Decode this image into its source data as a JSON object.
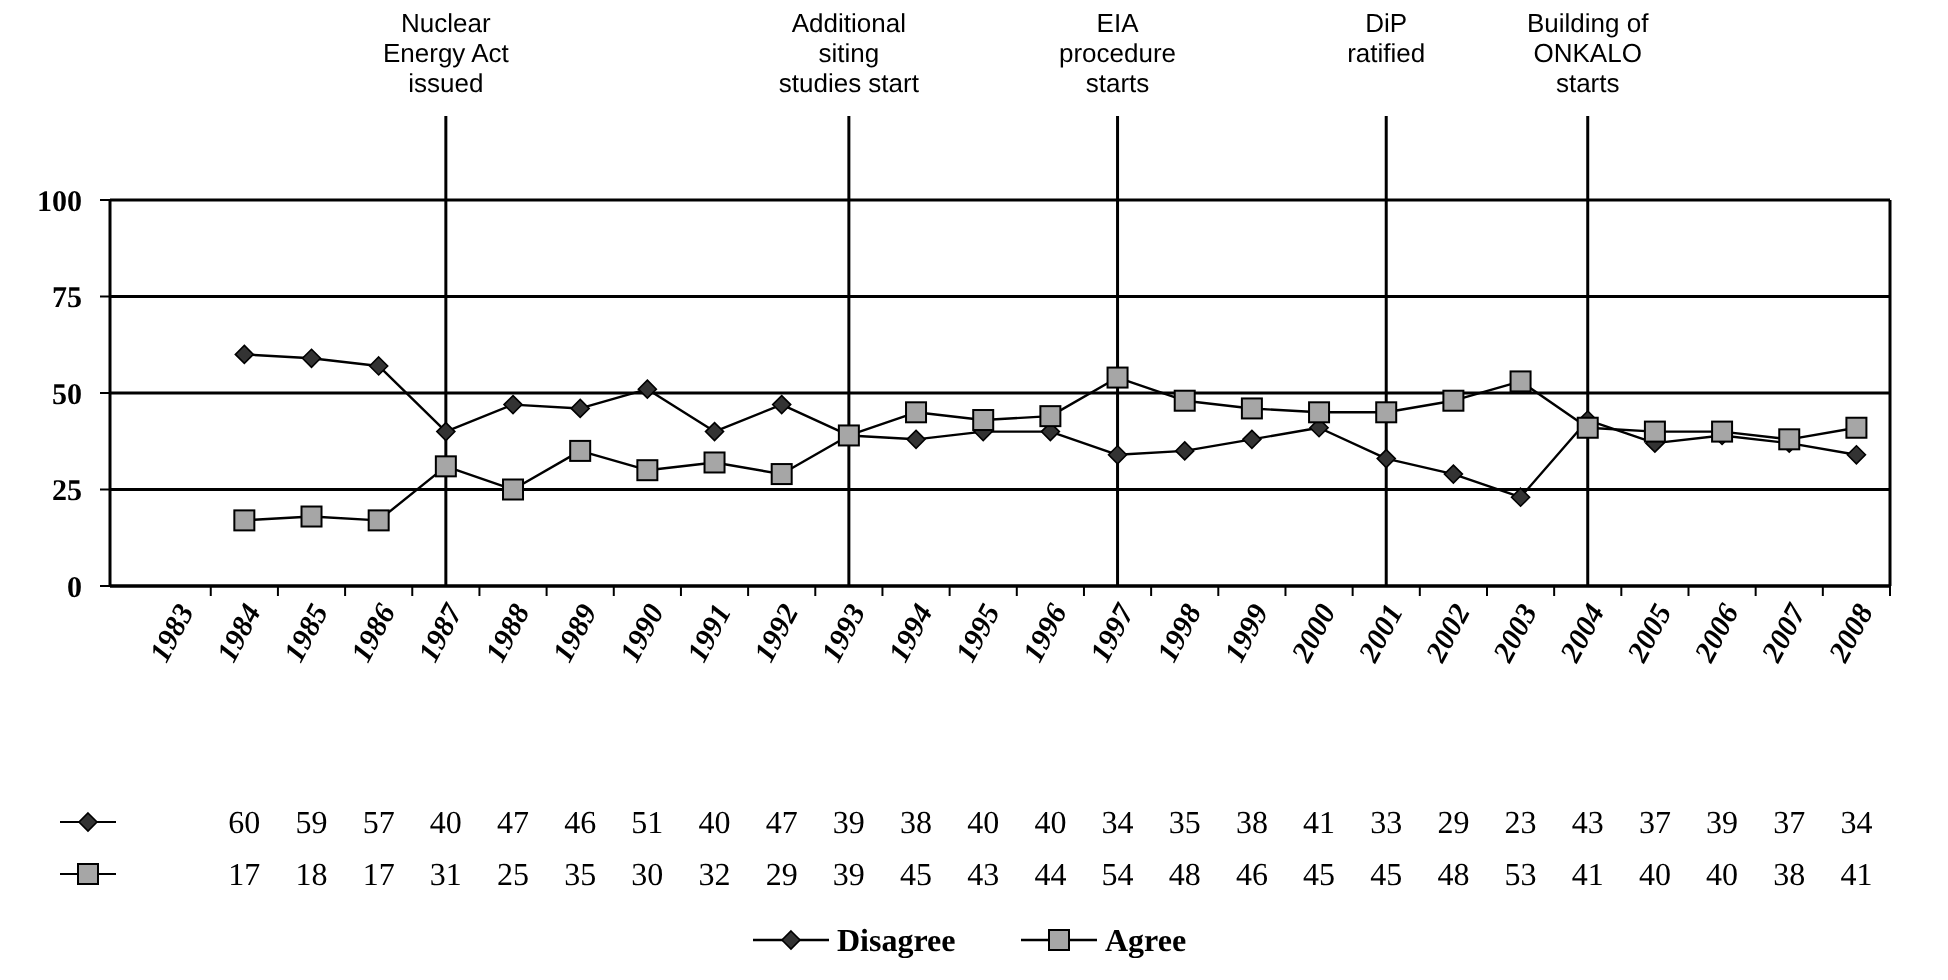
{
  "chart_data": {
    "type": "line",
    "categories": [
      "1983",
      "1984",
      "1985",
      "1986",
      "1987",
      "1988",
      "1989",
      "1990",
      "1991",
      "1992",
      "1993",
      "1994",
      "1995",
      "1996",
      "1997",
      "1998",
      "1999",
      "2000",
      "2001",
      "2002",
      "2003",
      "2004",
      "2005",
      "2006",
      "2007",
      "2008"
    ],
    "series": [
      {
        "name": "Disagree",
        "color": "#333333",
        "marker": "diamond",
        "values": [
          null,
          60,
          59,
          57,
          40,
          47,
          46,
          51,
          40,
          47,
          39,
          38,
          40,
          40,
          34,
          35,
          38,
          41,
          33,
          29,
          23,
          43,
          37,
          39,
          37,
          34
        ]
      },
      {
        "name": "Agree",
        "color": "#a6a6a6",
        "marker": "square",
        "values": [
          null,
          17,
          18,
          17,
          31,
          25,
          35,
          30,
          32,
          29,
          39,
          45,
          43,
          44,
          54,
          48,
          46,
          45,
          45,
          48,
          53,
          41,
          40,
          40,
          38,
          41
        ]
      }
    ],
    "ylim": [
      0,
      100
    ],
    "yticks": [
      0,
      25,
      50,
      75,
      100
    ],
    "grid": "y",
    "legend": "bottom",
    "data_labels": true,
    "ref_lines": [
      {
        "axis": "x",
        "value": "1987",
        "label": "Nuclear\nEnergy Act\nissued"
      },
      {
        "axis": "x",
        "value": "1993",
        "label": "Additional\nsiting\nstudies start"
      },
      {
        "axis": "x",
        "value": "1997",
        "label": "EIA\nprocedure\nstarts"
      },
      {
        "axis": "x",
        "value": "2001",
        "label": "DiP\nratified"
      },
      {
        "axis": "x",
        "value": "2004",
        "label": "Building of\nONKALO\nstarts"
      }
    ]
  }
}
